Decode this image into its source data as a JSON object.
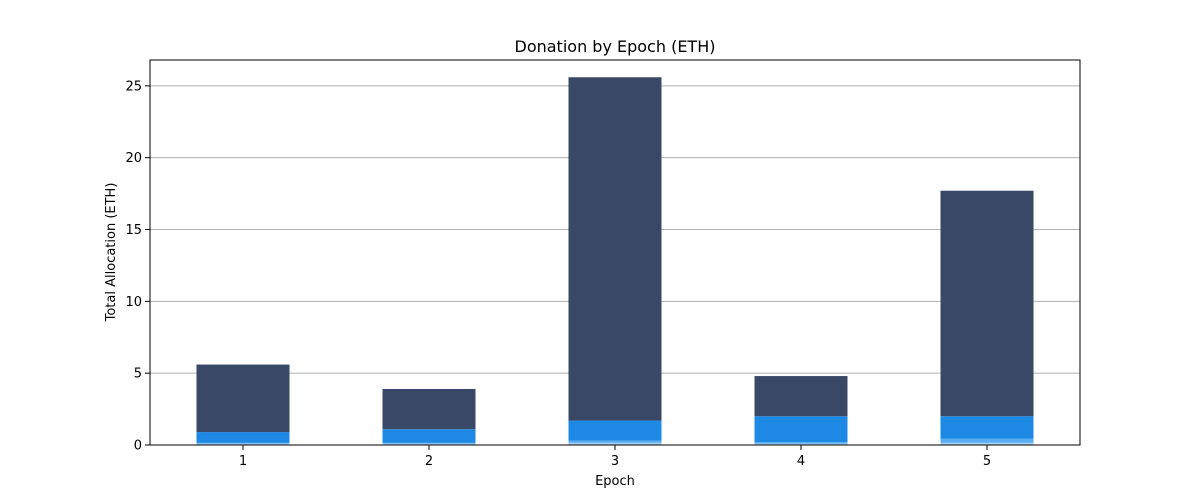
{
  "chart_data": {
    "type": "bar",
    "stacked": true,
    "title": "Donation by Epoch (ETH)",
    "xlabel": "Epoch",
    "ylabel": "Total Allocation (ETH)",
    "categories": [
      "1",
      "2",
      "3",
      "4",
      "5"
    ],
    "ylim": [
      0,
      26.8
    ],
    "yticks": [
      0,
      5,
      10,
      15,
      20,
      25
    ],
    "grid": "y",
    "colors": [
      "#a9d2f5",
      "#5aadf0",
      "#1e88e5",
      "#394867"
    ],
    "series": [
      {
        "values": [
          0.1,
          0.1,
          0.15,
          0.1,
          0.15
        ]
      },
      {
        "values": [
          0.05,
          0.05,
          0.15,
          0.1,
          0.3
        ]
      },
      {
        "values": [
          0.75,
          0.95,
          1.4,
          1.8,
          1.55
        ]
      },
      {
        "values": [
          4.7,
          2.8,
          23.9,
          2.8,
          15.7
        ]
      }
    ]
  }
}
